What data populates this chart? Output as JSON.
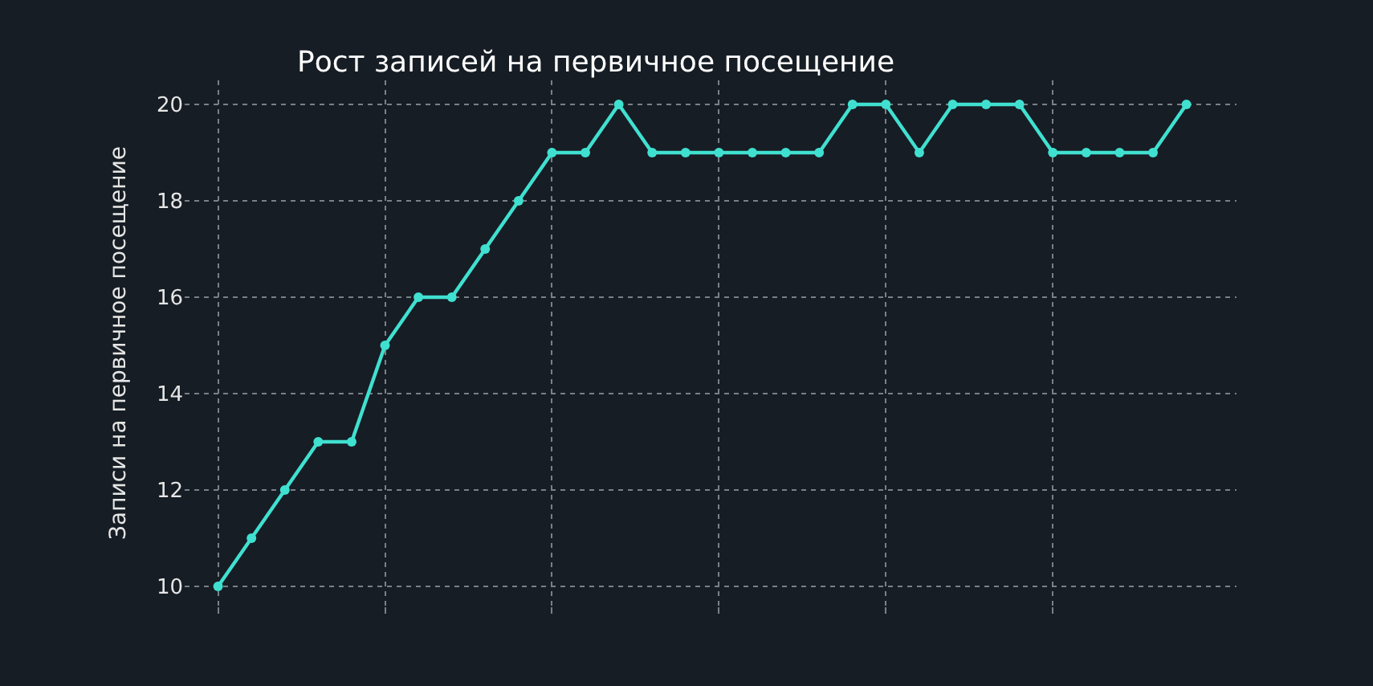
{
  "chart_data": {
    "type": "line",
    "title": "Рост записей на первичное посещение",
    "ylabel": "Записи на первичное посещение",
    "categories": [
      null,
      null,
      null,
      null,
      null,
      null,
      null,
      null,
      null,
      null,
      null,
      null,
      null,
      null,
      null,
      null,
      null,
      null,
      null,
      null,
      null,
      null,
      null,
      null,
      null,
      null,
      null,
      null,
      null,
      null
    ],
    "series": [
      {
        "color": "#40e0d0",
        "values": [
          10,
          11,
          12,
          13,
          13,
          15,
          16,
          16,
          17,
          18,
          19,
          19,
          20,
          19,
          19,
          19,
          19,
          19,
          19,
          20,
          20,
          19,
          20,
          20,
          20,
          19,
          19,
          19,
          19,
          20
        ]
      }
    ],
    "ylim": [
      9.6,
      20.5
    ],
    "yticks": [
      10,
      12,
      14,
      16,
      18,
      20
    ],
    "grid": true,
    "marker": "circle",
    "line_style": "solid",
    "tick_labels": "y"
  }
}
